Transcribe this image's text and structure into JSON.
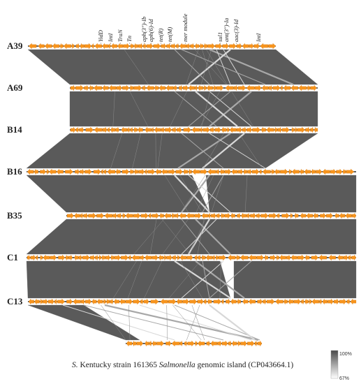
{
  "gene_labels": [
    "YidD",
    "IntI",
    "TraN",
    "Tn",
    "aph(3'')-Ib",
    "aph(6)-Id",
    "tet(R)",
    "tet(M)",
    "mer module",
    "sul1",
    "ant(3'')-Ia",
    "aac(3)-Id",
    "IntI"
  ],
  "tracks": [
    {
      "label": "A39"
    },
    {
      "label": "A69"
    },
    {
      "label": "B14"
    },
    {
      "label": "B16"
    },
    {
      "label": "B35"
    },
    {
      "label": "C1"
    },
    {
      "label": "C13"
    },
    {
      "label": ""
    }
  ],
  "caption": {
    "prefix": "S.",
    "part1": " Kentucky strain 161365 ",
    "italic": "Salmonella",
    "part2": " genomic island  (CP043664.1)"
  },
  "legend": {
    "max_label": "100%",
    "min_label": "67%"
  },
  "colors": {
    "gene": "#f7941d",
    "backbone": "#2b2b2b",
    "homology_high": "#5a5a5a",
    "homology_low": "#c8c8c8"
  }
}
